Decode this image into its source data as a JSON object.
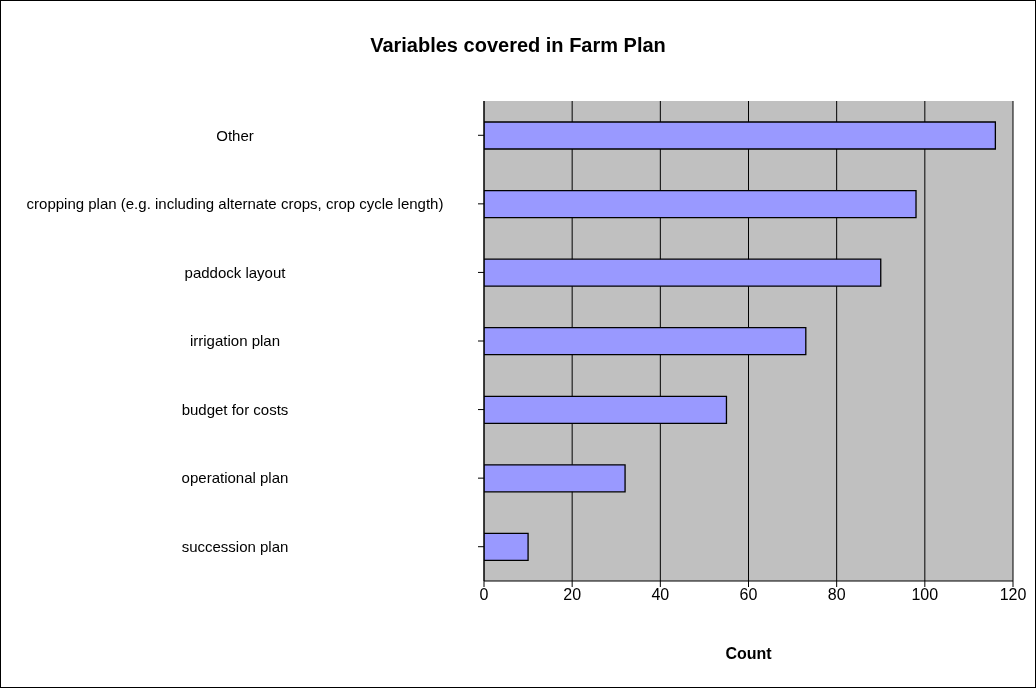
{
  "chart_data": {
    "type": "bar",
    "orientation": "horizontal",
    "title": "Variables covered in Farm Plan",
    "xlabel": "Count",
    "categories": [
      "Other",
      "cropping plan (e.g. including alternate crops, crop cycle length)",
      "paddock layout",
      "irrigation plan",
      "budget for costs",
      "operational plan",
      "succession plan"
    ],
    "values": [
      116,
      98,
      90,
      73,
      55,
      32,
      10
    ],
    "color": "#9999ff",
    "xlim": [
      0,
      120
    ],
    "xticks": [
      0,
      20,
      40,
      60,
      80,
      100,
      120
    ],
    "grid": "x"
  }
}
